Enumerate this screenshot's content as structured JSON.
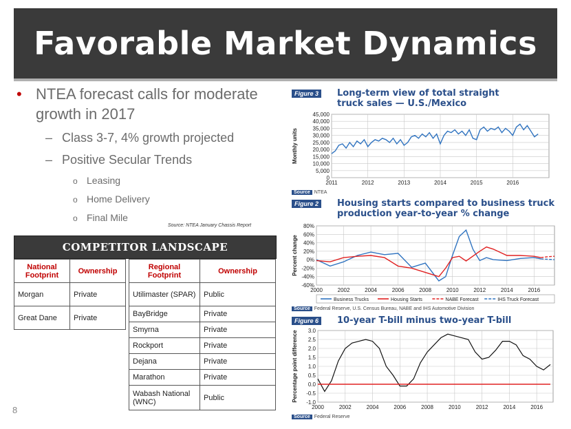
{
  "slide": {
    "title": "Favorable Market Dynamics",
    "page_number": "8",
    "source_note": "Source:  NTEA January Chassis Report"
  },
  "bullets": {
    "main": "NTEA forecast calls for moderate growth in 2017",
    "sub1": "Class 3-7, 4% growth projected",
    "sub2": "Positive Secular Trends",
    "items": [
      "Leasing",
      "Home Delivery",
      "Final Mile"
    ],
    "bullet_glyph": "•",
    "dash_glyph": "–",
    "circle_glyph": "o"
  },
  "competitor": {
    "header": "COMPETITOR LANDSCAPE",
    "national_headers": [
      "National Footprint",
      "Ownership"
    ],
    "national_rows": [
      [
        "Morgan",
        "Private"
      ],
      [
        "Great Dane",
        "Private"
      ]
    ],
    "regional_headers": [
      "Regional Footprint",
      "Ownership"
    ],
    "regional_rows": [
      [
        "Utilimaster (SPAR)",
        "Public"
      ],
      [
        "BayBridge",
        "Private"
      ],
      [
        "Smyrna",
        "Private"
      ],
      [
        "Rockport",
        "Private"
      ],
      [
        "Dejana",
        "Private"
      ],
      [
        "Marathon",
        "Private"
      ],
      [
        "Wabash National (WNC)",
        "Public"
      ]
    ]
  },
  "colors": {
    "title_bar": "#3a3a3a",
    "accent_red": "#c00000",
    "figure_blue": "#2a4f8a",
    "series_blue": "#2f73c0",
    "series_red": "#e02020"
  },
  "chart_data": [
    {
      "type": "line",
      "figure_label": "Figure 3",
      "title": "Long-term view of total straight truck sales — U.S./Mexico",
      "ylabel": "Monthly units",
      "source_label": "Source",
      "source": "NTEA",
      "x_ticks": [
        "2011",
        "2012",
        "2013",
        "2014",
        "2015",
        "2016"
      ],
      "xlim": [
        2011,
        2017
      ],
      "y_ticks": [
        "45,000",
        "40,000",
        "35,000",
        "30,000",
        "25,000",
        "20,000",
        "15,000",
        "10,000",
        "5,000",
        "0"
      ],
      "ylim": [
        0,
        45000
      ],
      "series": [
        {
          "x": [
            2011.0,
            2011.1,
            2011.2,
            2011.3,
            2011.4,
            2011.5,
            2011.6,
            2011.7,
            2011.8,
            2011.9,
            2012.0,
            2012.1,
            2012.2,
            2012.3,
            2012.4,
            2012.5,
            2012.6,
            2012.7,
            2012.8,
            2012.9,
            2013.0,
            2013.1,
            2013.2,
            2013.3,
            2013.4,
            2013.5,
            2013.6,
            2013.7,
            2013.8,
            2013.9,
            2014.0,
            2014.1,
            2014.2,
            2014.3,
            2014.4,
            2014.5,
            2014.6,
            2014.7,
            2014.8,
            2014.9,
            2015.0,
            2015.1,
            2015.2,
            2015.3,
            2015.4,
            2015.5,
            2015.6,
            2015.7,
            2015.8,
            2015.9,
            2016.0,
            2016.1,
            2016.2,
            2016.3,
            2016.4,
            2016.5,
            2016.6,
            2016.7
          ],
          "values": [
            17000,
            19000,
            23000,
            24000,
            21000,
            25000,
            22000,
            26000,
            24000,
            27000,
            22000,
            25000,
            27000,
            26000,
            28000,
            27000,
            25000,
            28000,
            24000,
            27000,
            23000,
            25000,
            29000,
            30000,
            28000,
            31000,
            29000,
            32000,
            28000,
            31000,
            24000,
            30000,
            33000,
            32000,
            34000,
            31000,
            33000,
            30000,
            34000,
            28000,
            27000,
            34000,
            36000,
            33000,
            35000,
            34000,
            36000,
            32000,
            35000,
            33000,
            30000,
            36000,
            38000,
            34000,
            37000,
            33000,
            29000,
            31000
          ]
        }
      ]
    },
    {
      "type": "line",
      "figure_label": "Figure 2",
      "title": "Housing starts compared to business truck production year-to-year % change",
      "ylabel": "Percent change",
      "source_label": "Source",
      "source": "Federal Reserve, U.S. Census Bureau, NABE and IHS Automotive Division",
      "x_ticks": [
        "2000",
        "2002",
        "2004",
        "2006",
        "2008",
        "2010",
        "2012",
        "2014",
        "2016"
      ],
      "xlim": [
        2000,
        2017.5
      ],
      "y_ticks": [
        "80%",
        "60%",
        "40%",
        "20%",
        "0%",
        "-20%",
        "-40%",
        "-60%"
      ],
      "ylim": [
        -60,
        80
      ],
      "series": [
        {
          "name": "Business Trucks",
          "x": [
            2000,
            2001,
            2002,
            2003,
            2004,
            2005,
            2006,
            2007,
            2008,
            2009,
            2009.5,
            2010,
            2010.5,
            2011,
            2011.5,
            2012,
            2012.5,
            2013,
            2014,
            2015,
            2016,
            2016.5
          ],
          "values": [
            0,
            -15,
            -5,
            10,
            18,
            12,
            15,
            -18,
            -8,
            -50,
            -40,
            10,
            55,
            70,
            25,
            -2,
            5,
            0,
            -2,
            3,
            5,
            2
          ]
        },
        {
          "name": "Housing Starts",
          "x": [
            2000,
            2001,
            2002,
            2003,
            2004,
            2005,
            2006,
            2007,
            2008,
            2009,
            2009.5,
            2010,
            2010.5,
            2011,
            2012,
            2012.5,
            2013,
            2014,
            2015,
            2016,
            2016.5
          ],
          "values": [
            -2,
            -5,
            5,
            8,
            10,
            5,
            -15,
            -20,
            -30,
            -40,
            -20,
            5,
            8,
            -3,
            20,
            30,
            25,
            10,
            10,
            8,
            5
          ]
        },
        {
          "name": "NABE Forecast",
          "x": [
            2016.5,
            2017,
            2017.5
          ],
          "values": [
            5,
            7,
            8
          ]
        },
        {
          "name": "IHS Truck Forecast",
          "x": [
            2016.5,
            2017,
            2017.5
          ],
          "values": [
            2,
            1,
            0
          ]
        }
      ]
    },
    {
      "type": "line",
      "figure_label": "Figure 6",
      "title": "10-year T-bill minus two-year T-bill",
      "ylabel": "Percentage point difference",
      "source_label": "Source",
      "source": "Federal Reserve",
      "x_ticks": [
        "2000",
        "2002",
        "2004",
        "2006",
        "2008",
        "2010",
        "2012",
        "2014",
        "2016"
      ],
      "xlim": [
        2000,
        2017.2
      ],
      "y_ticks": [
        "3.0",
        "2.5",
        "2.0",
        "1.5",
        "1.0",
        "0.5",
        "0.0",
        "-0.5",
        "-1.0"
      ],
      "ylim": [
        -1.0,
        3.0
      ],
      "series": [
        {
          "x": [
            2000,
            2000.5,
            2001,
            2001.5,
            2002,
            2002.5,
            2003,
            2003.5,
            2004,
            2004.5,
            2005,
            2005.5,
            2006,
            2006.5,
            2007,
            2007.5,
            2008,
            2008.5,
            2009,
            2009.5,
            2010,
            2010.5,
            2011,
            2011.5,
            2012,
            2012.5,
            2013,
            2013.5,
            2014,
            2014.5,
            2015,
            2015.5,
            2016,
            2016.5,
            2017
          ],
          "values": [
            0.3,
            -0.4,
            0.2,
            1.3,
            2.0,
            2.3,
            2.4,
            2.5,
            2.4,
            2.0,
            1.0,
            0.5,
            -0.1,
            -0.1,
            0.3,
            1.2,
            1.8,
            2.2,
            2.6,
            2.8,
            2.7,
            2.6,
            2.5,
            1.8,
            1.4,
            1.5,
            1.9,
            2.4,
            2.4,
            2.2,
            1.6,
            1.4,
            1.0,
            0.8,
            1.1
          ]
        },
        {
          "x": [
            2000,
            2017
          ],
          "values": [
            0,
            0
          ]
        }
      ]
    }
  ],
  "legend": {
    "business_trucks": "Business Trucks",
    "housing_starts": "Housing Starts",
    "nabe_forecast": "NABE Forecast",
    "ihs_forecast": "IHS Truck Forecast"
  }
}
